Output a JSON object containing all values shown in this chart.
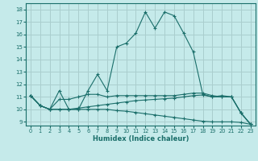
{
  "xlabel": "Humidex (Indice chaleur)",
  "xlim": [
    -0.5,
    23.5
  ],
  "ylim": [
    8.7,
    18.5
  ],
  "xticks": [
    0,
    1,
    2,
    3,
    4,
    5,
    6,
    7,
    8,
    9,
    10,
    11,
    12,
    13,
    14,
    15,
    16,
    17,
    18,
    19,
    20,
    21,
    22,
    23
  ],
  "yticks": [
    9,
    10,
    11,
    12,
    13,
    14,
    15,
    16,
    17,
    18
  ],
  "bg_color": "#c5eaea",
  "grid_color": "#aacece",
  "line_color": "#1a6e6a",
  "line1_y": [
    11.1,
    10.3,
    10.0,
    11.5,
    10.0,
    10.0,
    11.5,
    12.8,
    11.5,
    15.0,
    15.3,
    16.1,
    17.8,
    16.5,
    17.8,
    17.5,
    16.1,
    14.6,
    11.2,
    11.0,
    11.1,
    11.0,
    9.7,
    8.8
  ],
  "line2_y": [
    11.1,
    10.3,
    10.0,
    10.8,
    10.8,
    11.0,
    11.2,
    11.2,
    11.0,
    11.1,
    11.1,
    11.1,
    11.1,
    11.1,
    11.1,
    11.1,
    11.2,
    11.3,
    11.3,
    11.1,
    11.0,
    11.0,
    9.7,
    8.8
  ],
  "line3_y": [
    11.1,
    10.3,
    10.0,
    10.0,
    10.0,
    10.1,
    10.2,
    10.3,
    10.4,
    10.5,
    10.6,
    10.7,
    10.75,
    10.8,
    10.85,
    10.9,
    11.0,
    11.1,
    11.15,
    11.0,
    11.0,
    11.0,
    9.7,
    8.8
  ],
  "line4_y": [
    11.1,
    10.3,
    10.0,
    10.0,
    10.0,
    10.0,
    10.0,
    10.0,
    10.0,
    9.9,
    9.85,
    9.75,
    9.65,
    9.55,
    9.45,
    9.35,
    9.25,
    9.15,
    9.05,
    9.0,
    9.0,
    9.0,
    8.95,
    8.8
  ]
}
